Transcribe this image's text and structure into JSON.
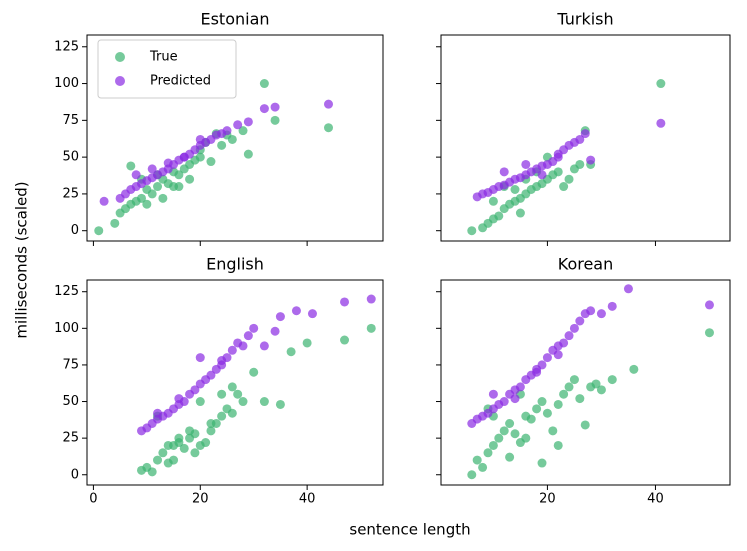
{
  "figure": {
    "xlabel": "sentence length",
    "ylabel": "milliseconds (scaled)"
  },
  "chart_data": [
    {
      "type": "scatter",
      "title": "Estonian",
      "legend": "upper left",
      "show_xticklabels": false,
      "show_yticklabels": true,
      "xlim": [
        -1.2,
        54.2
      ],
      "ylim": [
        -7,
        133
      ],
      "xticks": [
        0,
        20,
        40
      ],
      "yticks": [
        0,
        25,
        50,
        75,
        100,
        125
      ],
      "series": [
        {
          "name": "True",
          "color": "#3cb371",
          "x": [
            1,
            4,
            5,
            6,
            7,
            8,
            9,
            10,
            11,
            12,
            13,
            14,
            15,
            16,
            17,
            18,
            19,
            20,
            21,
            22,
            24,
            25,
            26,
            28,
            29,
            32,
            34,
            44,
            7,
            9,
            12,
            15,
            18,
            20,
            23,
            10,
            13,
            16
          ],
          "values": [
            0,
            5,
            12,
            15,
            18,
            20,
            22,
            28,
            25,
            30,
            35,
            32,
            40,
            38,
            42,
            45,
            48,
            55,
            60,
            47,
            58,
            65,
            62,
            68,
            52,
            100,
            75,
            70,
            44,
            35,
            38,
            30,
            35,
            50,
            66,
            18,
            22,
            30
          ]
        },
        {
          "name": "Predicted",
          "color": "#8a2be2",
          "x": [
            2,
            5,
            6,
            7,
            8,
            9,
            10,
            11,
            12,
            13,
            14,
            15,
            16,
            17,
            18,
            19,
            20,
            21,
            22,
            23,
            24,
            25,
            27,
            29,
            32,
            34,
            44,
            8,
            11,
            14,
            17,
            20
          ],
          "values": [
            20,
            22,
            25,
            28,
            30,
            32,
            34,
            36,
            38,
            40,
            42,
            45,
            48,
            50,
            52,
            55,
            58,
            60,
            62,
            65,
            66,
            68,
            72,
            74,
            83,
            84,
            86,
            38,
            42,
            46,
            50,
            62
          ]
        }
      ]
    },
    {
      "type": "scatter",
      "title": "Turkish",
      "show_xticklabels": false,
      "show_yticklabels": false,
      "xlim": [
        0.3,
        53.8
      ],
      "ylim": [
        -7,
        133
      ],
      "xticks": [
        20,
        40
      ],
      "yticks": [
        0,
        25,
        50,
        75,
        100,
        125
      ],
      "series": [
        {
          "name": "True",
          "color": "#3cb371",
          "x": [
            6,
            8,
            9,
            10,
            11,
            12,
            13,
            14,
            15,
            16,
            17,
            18,
            19,
            20,
            21,
            22,
            23,
            24,
            25,
            26,
            27,
            28,
            12,
            14,
            16,
            18,
            20,
            41,
            10,
            15
          ],
          "values": [
            0,
            2,
            5,
            8,
            10,
            15,
            18,
            20,
            22,
            25,
            28,
            30,
            32,
            35,
            38,
            40,
            30,
            35,
            42,
            45,
            68,
            45,
            30,
            28,
            35,
            40,
            50,
            100,
            20,
            12
          ]
        },
        {
          "name": "Predicted",
          "color": "#8a2be2",
          "x": [
            7,
            8,
            9,
            10,
            11,
            12,
            13,
            14,
            15,
            16,
            17,
            18,
            19,
            20,
            21,
            22,
            23,
            24,
            25,
            26,
            27,
            28,
            41,
            12,
            16,
            19,
            22
          ],
          "values": [
            23,
            25,
            26,
            28,
            30,
            31,
            33,
            35,
            36,
            38,
            40,
            42,
            44,
            45,
            47,
            50,
            55,
            58,
            60,
            62,
            66,
            48,
            73,
            40,
            45,
            38,
            52
          ]
        }
      ]
    },
    {
      "type": "scatter",
      "title": "English",
      "show_xticklabels": true,
      "show_yticklabels": true,
      "xlim": [
        -1.2,
        54.2
      ],
      "ylim": [
        -7,
        133
      ],
      "xticks": [
        0,
        20,
        40
      ],
      "yticks": [
        0,
        25,
        50,
        75,
        100,
        125
      ],
      "series": [
        {
          "name": "True",
          "color": "#3cb371",
          "x": [
            9,
            10,
            11,
            12,
            13,
            14,
            15,
            16,
            17,
            18,
            19,
            20,
            21,
            22,
            23,
            24,
            25,
            26,
            27,
            28,
            30,
            32,
            35,
            37,
            40,
            47,
            52,
            12,
            14,
            16,
            18,
            20,
            22,
            24,
            26,
            15,
            19
          ],
          "values": [
            3,
            5,
            2,
            10,
            15,
            8,
            20,
            22,
            18,
            25,
            28,
            20,
            22,
            30,
            35,
            40,
            45,
            42,
            55,
            50,
            70,
            50,
            48,
            84,
            90,
            92,
            100,
            40,
            20,
            25,
            30,
            50,
            35,
            55,
            60,
            10,
            15
          ]
        },
        {
          "name": "Predicted",
          "color": "#8a2be2",
          "x": [
            9,
            10,
            11,
            12,
            13,
            14,
            15,
            16,
            17,
            18,
            19,
            20,
            21,
            22,
            23,
            24,
            25,
            26,
            27,
            28,
            29,
            30,
            32,
            34,
            35,
            38,
            41,
            47,
            52,
            12,
            16,
            20,
            24
          ],
          "values": [
            30,
            32,
            35,
            38,
            40,
            42,
            45,
            48,
            50,
            55,
            58,
            62,
            65,
            68,
            72,
            75,
            80,
            85,
            90,
            88,
            95,
            100,
            88,
            98,
            108,
            112,
            110,
            118,
            120,
            42,
            52,
            80,
            78
          ]
        }
      ]
    },
    {
      "type": "scatter",
      "title": "Korean",
      "show_xticklabels": true,
      "show_yticklabels": false,
      "xlim": [
        0.3,
        53.8
      ],
      "ylim": [
        -7,
        133
      ],
      "xticks": [
        20,
        40
      ],
      "yticks": [
        0,
        25,
        50,
        75,
        100,
        125
      ],
      "series": [
        {
          "name": "True",
          "color": "#3cb371",
          "x": [
            6,
            7,
            8,
            9,
            10,
            11,
            12,
            13,
            14,
            15,
            16,
            17,
            18,
            19,
            20,
            21,
            22,
            23,
            24,
            25,
            26,
            27,
            28,
            29,
            30,
            32,
            36,
            50,
            10,
            13,
            16,
            19,
            22,
            9,
            15
          ],
          "values": [
            0,
            10,
            5,
            15,
            20,
            25,
            30,
            35,
            28,
            22,
            40,
            38,
            45,
            50,
            42,
            30,
            48,
            55,
            60,
            65,
            52,
            34,
            60,
            62,
            58,
            65,
            72,
            97,
            40,
            12,
            25,
            8,
            20,
            45,
            55
          ]
        },
        {
          "name": "Predicted",
          "color": "#8a2be2",
          "x": [
            6,
            7,
            8,
            9,
            10,
            11,
            12,
            13,
            14,
            15,
            16,
            17,
            18,
            19,
            20,
            21,
            22,
            23,
            24,
            25,
            26,
            27,
            28,
            30,
            32,
            35,
            50,
            10,
            14,
            18,
            22
          ],
          "values": [
            35,
            38,
            40,
            42,
            45,
            48,
            50,
            55,
            58,
            60,
            65,
            68,
            72,
            75,
            80,
            85,
            88,
            90,
            95,
            100,
            105,
            110,
            112,
            110,
            115,
            127,
            116,
            55,
            52,
            70,
            82
          ]
        }
      ]
    }
  ]
}
